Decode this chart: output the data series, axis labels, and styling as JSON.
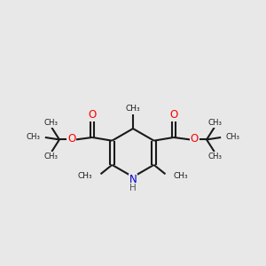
{
  "bg_color": "#e8e8e8",
  "bond_color": "#1a1a1a",
  "N_color": "#0000cc",
  "O_color": "#ff0000",
  "line_width": 1.5,
  "figsize": [
    3.0,
    3.0
  ],
  "dpi": 100,
  "xlim": [
    0,
    12
  ],
  "ylim": [
    0,
    11
  ]
}
